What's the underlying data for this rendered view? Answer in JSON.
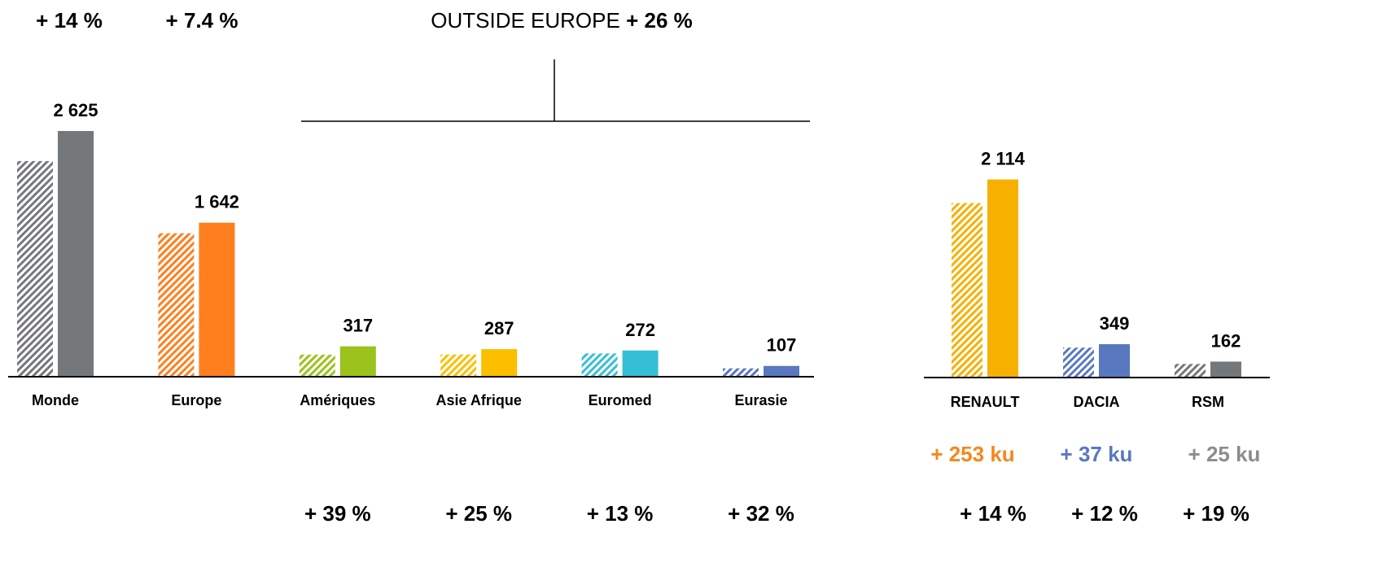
{
  "chart_data": [
    {
      "type": "bar",
      "group_label": "OUTSIDE EUROPE",
      "group_growth": "+ 26 %",
      "categories": [
        "Monde",
        "Europe",
        "Amériques",
        "Asie Afrique",
        "Euromed",
        "Eurasie"
      ],
      "colors": [
        "#75787b",
        "#ff7f1e",
        "#9bc31c",
        "#fbbf00",
        "#35bfd6",
        "#5a78c0"
      ],
      "series": [
        {
          "name": null,
          "pattern": "hatched",
          "values": [
            2303,
            1529,
            228,
            230,
            241,
            81
          ]
        },
        {
          "name": null,
          "pattern": "solid",
          "values": [
            2625,
            1642,
            317,
            287,
            272,
            107
          ],
          "value_labels": [
            "2 625",
            "1 642",
            "317",
            "287",
            "272",
            "107"
          ]
        }
      ],
      "growth_labels": [
        "+ 14 %",
        "+ 7.4 %",
        "+ 39 %",
        "+ 25 %",
        "+ 13 %",
        "+ 32 %"
      ],
      "ylim": [
        0,
        3000
      ]
    },
    {
      "type": "bar",
      "categories": [
        "RENAULT",
        "DACIA",
        "RSM"
      ],
      "colors": [
        "#f7b000",
        "#5a78c0",
        "#75787b"
      ],
      "series": [
        {
          "name": null,
          "pattern": "hatched",
          "values": [
            1861,
            312,
            137
          ]
        },
        {
          "name": null,
          "pattern": "solid",
          "values": [
            2114,
            349,
            162
          ],
          "value_labels": [
            "2 114",
            "349",
            "162"
          ]
        }
      ],
      "delta_labels": [
        "+ 253 ku",
        "+ 37 ku",
        "+ 25 ku"
      ],
      "delta_colors": [
        "#f7861c",
        "#5a78c0",
        "#8c8c8c"
      ],
      "growth_labels": [
        "+ 14 %",
        "+ 12 %",
        "+ 19 %"
      ],
      "ylim": [
        0,
        3000
      ]
    }
  ]
}
